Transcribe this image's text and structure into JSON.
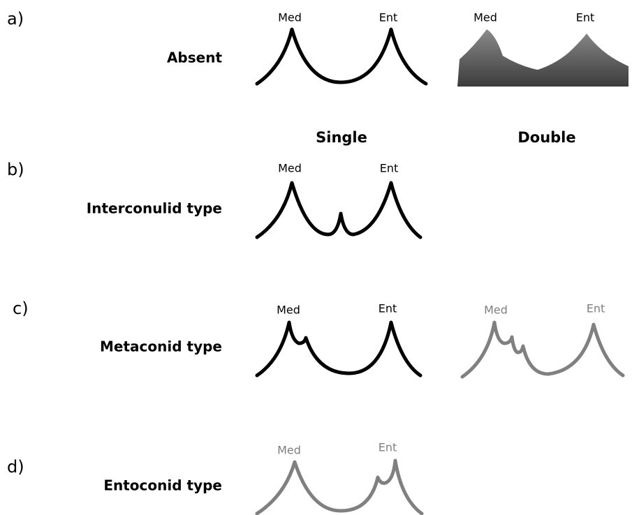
{
  "rows": [
    {
      "letter": "a)",
      "label": "Absent",
      "profiles": [
        {
          "left": "Med",
          "right": "Ent"
        },
        {
          "left": "Med",
          "right": "Ent"
        }
      ]
    },
    {
      "letter": "b)",
      "label": "Interconulid type",
      "profiles": [
        {
          "left": "Med",
          "right": "Ent"
        }
      ]
    },
    {
      "letter": "c)",
      "label": "Metaconid type",
      "profiles": [
        {
          "left": "Med",
          "right": "Ent"
        },
        {
          "left": "Med",
          "right": "Ent"
        }
      ]
    },
    {
      "letter": "d)",
      "label": "Entoconid type",
      "profiles": [
        {
          "left": "Med",
          "right": "Ent"
        }
      ]
    }
  ],
  "columns": [
    "Single",
    "Double"
  ]
}
